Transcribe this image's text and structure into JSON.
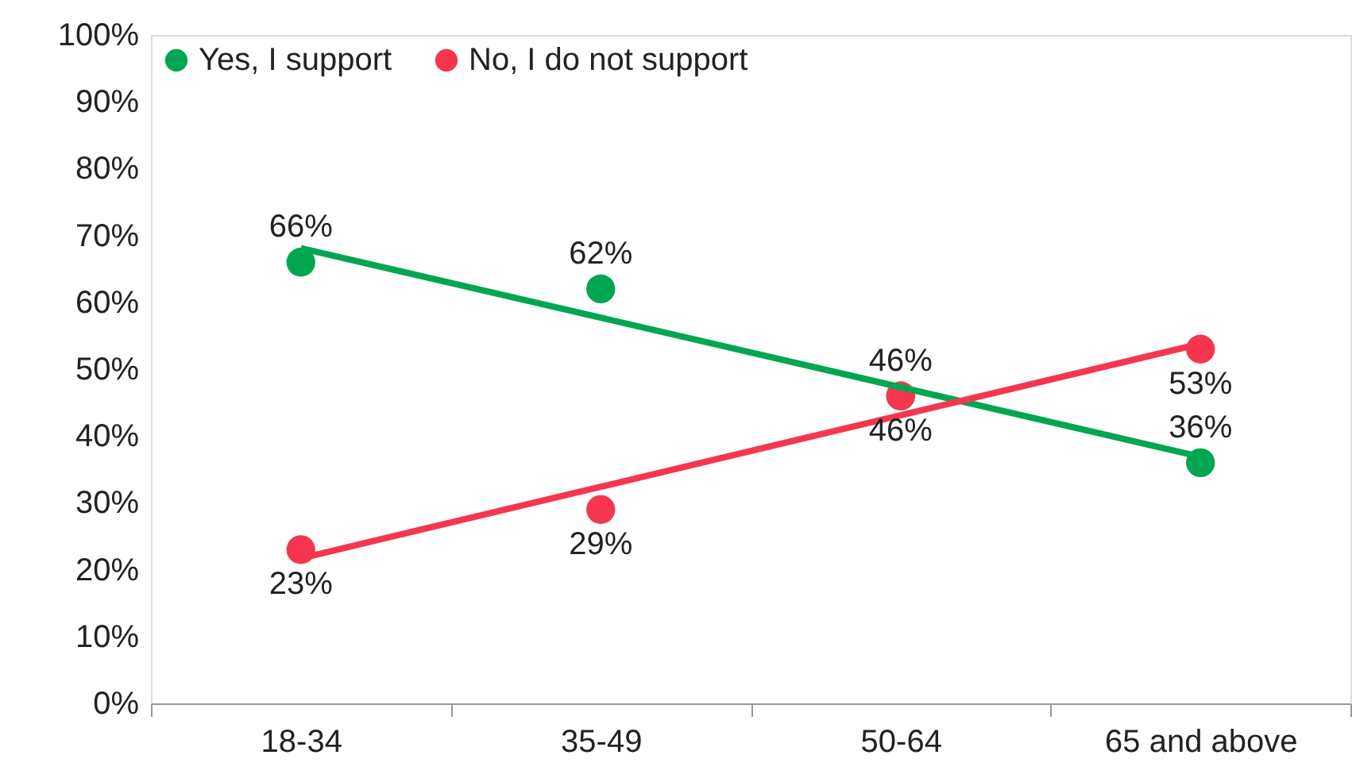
{
  "chart_data": {
    "type": "scatter",
    "legend": "top left",
    "marker": "circle",
    "grid": false,
    "categories": [
      "18-34",
      "35-49",
      "50-64",
      "65 and above"
    ],
    "ylim": [
      0,
      100
    ],
    "yticks": [
      {
        "value": 0,
        "label": "0%"
      },
      {
        "value": 10,
        "label": "10%"
      },
      {
        "value": 20,
        "label": "20%"
      },
      {
        "value": 30,
        "label": "30%"
      },
      {
        "value": 40,
        "label": "40%"
      },
      {
        "value": 50,
        "label": "50%"
      },
      {
        "value": 60,
        "label": "60%"
      },
      {
        "value": 70,
        "label": "70%"
      },
      {
        "value": 80,
        "label": "80%"
      },
      {
        "value": 90,
        "label": "90%"
      },
      {
        "value": 100,
        "label": "100%"
      }
    ],
    "series": [
      {
        "name": "Yes, I support",
        "color": "#00a651",
        "values": [
          66,
          62,
          46,
          36
        ],
        "value_labels": [
          "66%",
          "62%",
          "46%",
          "36%"
        ]
      },
      {
        "name": "No, I do not support",
        "color": "#f5364f",
        "values": [
          23,
          29,
          46,
          53
        ],
        "value_labels": [
          "23%",
          "29%",
          "46%",
          "53%"
        ]
      },
      {
        "type": "line",
        "marker": "none",
        "line_style": "solid",
        "color": "#00a651",
        "values": [
          68.1,
          57.7,
          47.3,
          36.9
        ]
      },
      {
        "type": "line",
        "marker": "none",
        "line_style": "solid",
        "color": "#f5364f",
        "values": [
          21.7,
          32.4,
          43.1,
          53.8
        ]
      }
    ]
  }
}
